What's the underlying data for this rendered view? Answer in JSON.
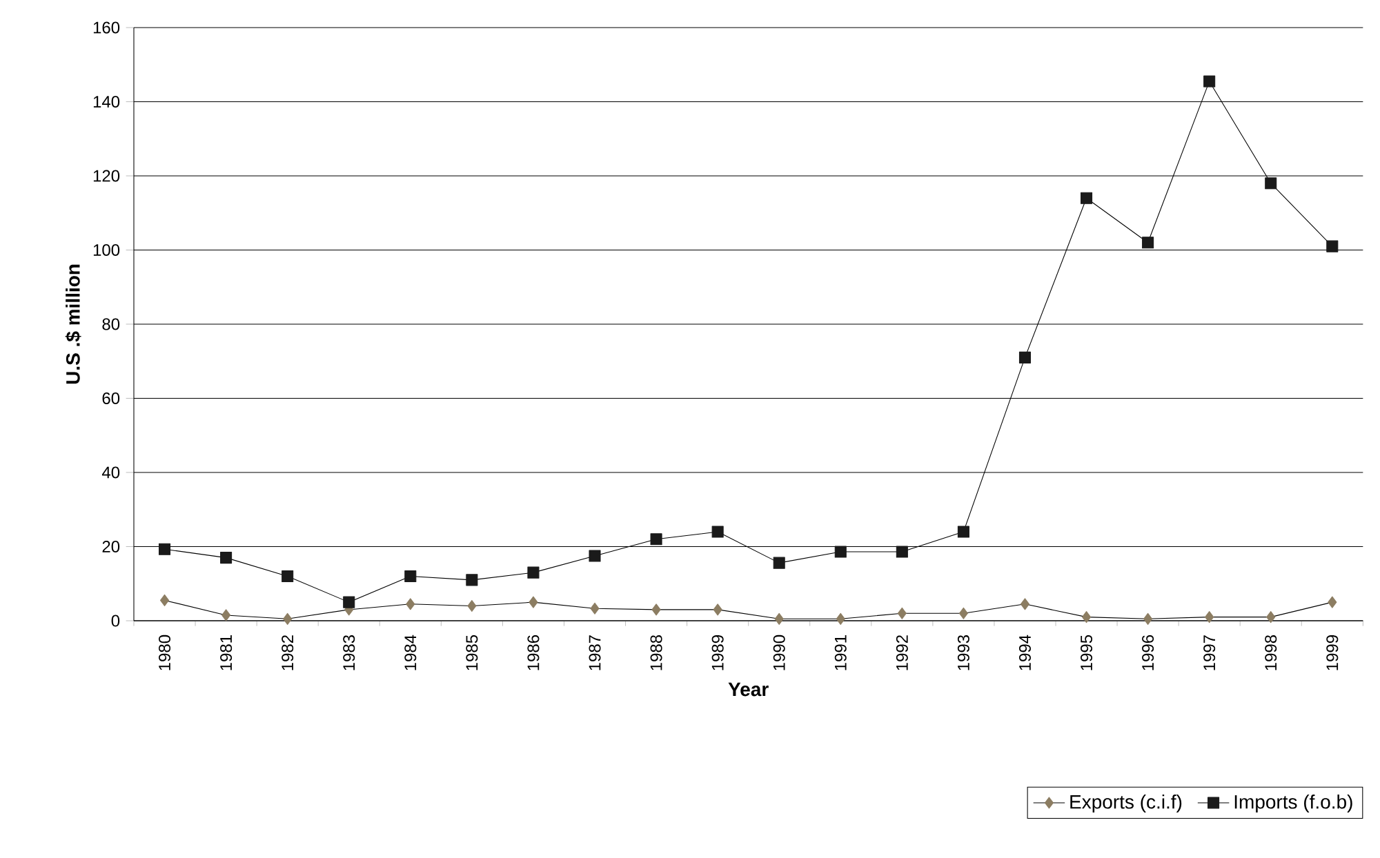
{
  "chart_data": {
    "type": "line",
    "xlabel": "Year",
    "ylabel": "U.S .$ million",
    "categories": [
      "1980",
      "1981",
      "1982",
      "1983",
      "1984",
      "1985",
      "1986",
      "1987",
      "1988",
      "1989",
      "1990",
      "1991",
      "1992",
      "1993",
      "1994",
      "1995",
      "1996",
      "1997",
      "1998",
      "1999"
    ],
    "series": [
      {
        "name": "Exports (c.i.f)",
        "color": "#8c7d62",
        "marker": "diamond",
        "values": [
          5.5,
          1.5,
          0.5,
          3,
          4.5,
          4,
          5,
          3.3,
          3,
          3,
          0.5,
          0.5,
          2,
          2,
          4.5,
          1,
          0.5,
          1,
          1,
          5
        ]
      },
      {
        "name": "Imports (f.o.b)",
        "color": "#1a1a1a",
        "marker": "square",
        "values": [
          19.3,
          17,
          12,
          5,
          12,
          11,
          13,
          17.5,
          22,
          24,
          15.6,
          18.6,
          18.6,
          24,
          71,
          114,
          102,
          145.5,
          118,
          101
        ]
      }
    ],
    "ylim": [
      0,
      160
    ],
    "yticks": [
      0,
      20,
      40,
      60,
      80,
      100,
      120,
      140,
      160
    ],
    "grid": "y",
    "legend": "bottom right",
    "line_style": "solid"
  }
}
